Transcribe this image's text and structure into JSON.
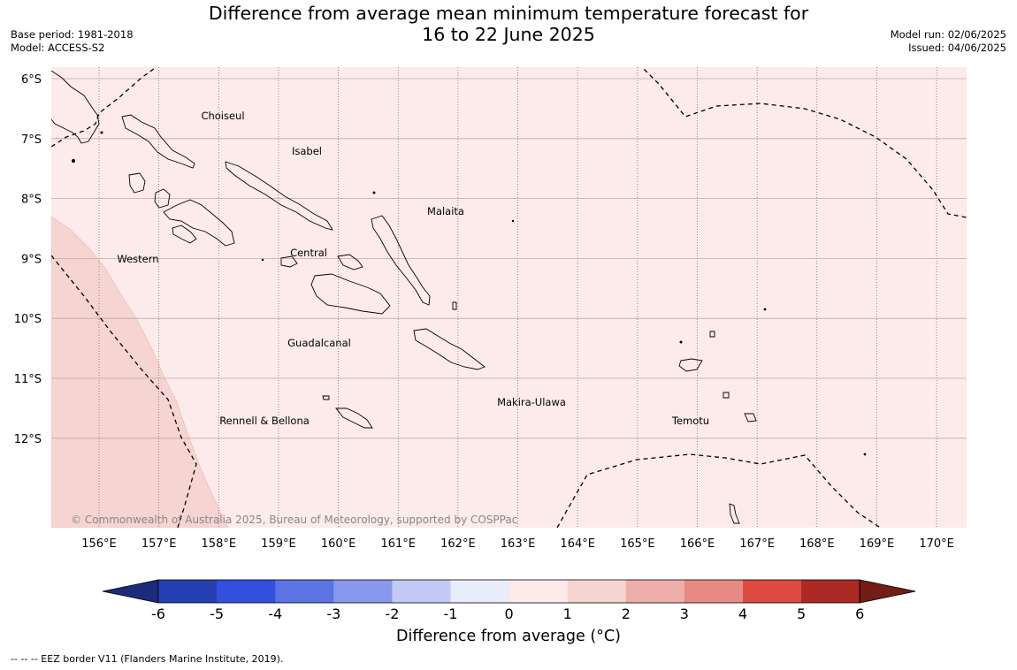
{
  "title_line1": "Difference from average mean minimum temperature forecast for",
  "title_line2": "16 to 22 June 2025",
  "base_period": "Base period: 1981-2018",
  "model": "Model: ACCESS-S2",
  "model_run": "Model run: 02/06/2025",
  "issued": "Issued: 04/06/2025",
  "lat_labels": [
    "6°S",
    "7°S",
    "8°S",
    "9°S",
    "10°S",
    "11°S",
    "12°S"
  ],
  "lon_labels": [
    "156°E",
    "157°E",
    "158°E",
    "159°E",
    "160°E",
    "161°E",
    "162°E",
    "163°E",
    "164°E",
    "165°E",
    "166°E",
    "167°E",
    "168°E",
    "169°E",
    "170°E"
  ],
  "regions": [
    "Choiseul",
    "Isabel",
    "Malaita",
    "Western",
    "Central",
    "Guadalcanal",
    "Makira-Ulawa",
    "Rennell & Bellona",
    "Temotu"
  ],
  "copyright": "© Commonwealth of Australia 2025, Bureau of Meteorology, supported by COSPPac",
  "colorbar": {
    "ticks": [
      "-6",
      "-5",
      "-4",
      "-3",
      "-2",
      "-1",
      "0",
      "1",
      "2",
      "3",
      "4",
      "5",
      "6"
    ],
    "colors": [
      "#1c2a7a",
      "#2440b0",
      "#3050dd",
      "#5b73e3",
      "#8898ec",
      "#c1c9f4",
      "#e9ecfb",
      "#fcebea",
      "#f6d4d1",
      "#eeaeaa",
      "#e68a83",
      "#dd4a3f",
      "#ab2a24",
      "#741c18"
    ],
    "label": "Difference from average (°C)"
  },
  "footer": "--  --  -- EEZ border V11 (Flanders Marine Institute, 2019).",
  "colors": {
    "band_0_1": "#fcebea",
    "band_1_2": "#f6d4d1",
    "grid": "#bfa8a8"
  }
}
